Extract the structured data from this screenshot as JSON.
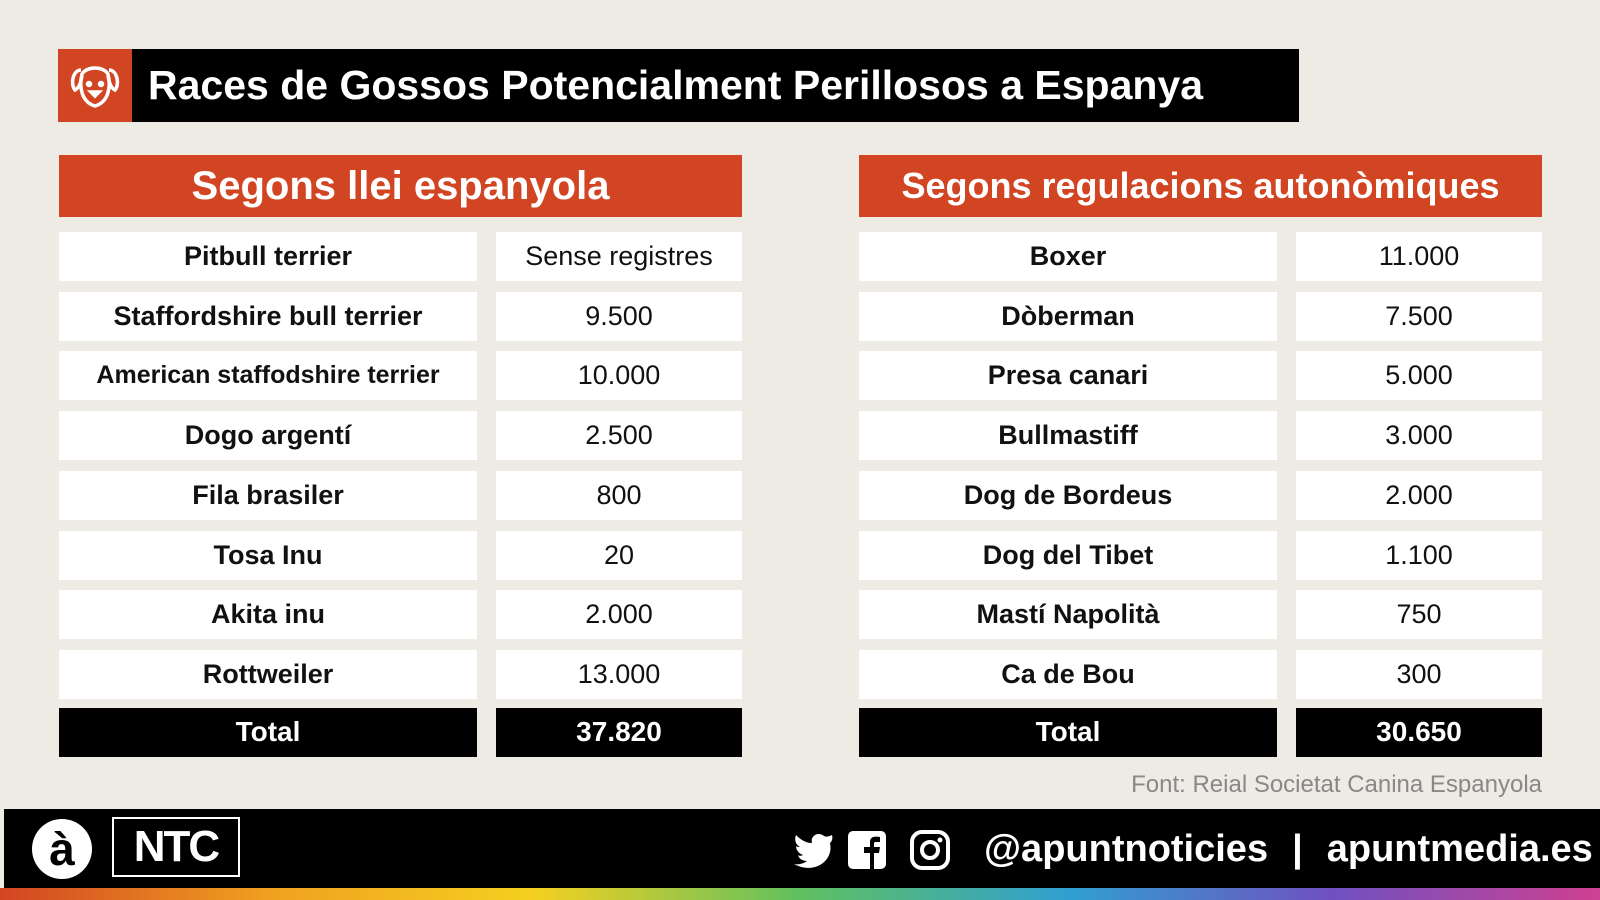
{
  "header": {
    "title": "Races de Gossos Potencialment Perillosos a Espanya"
  },
  "tables": [
    {
      "title": "Segons llei espanyola",
      "rows": [
        [
          "Pitbull terrier",
          "Sense registres"
        ],
        [
          "Staffordshire bull terrier",
          "9.500"
        ],
        [
          "American staffodshire terrier",
          "10.000"
        ],
        [
          "Dogo argentí",
          "2.500"
        ],
        [
          "Fila brasiler",
          "800"
        ],
        [
          "Tosa Inu",
          "20"
        ],
        [
          "Akita inu",
          "2.000"
        ],
        [
          "Rottweiler",
          "13.000"
        ]
      ],
      "total": [
        "Total",
        "37.820"
      ]
    },
    {
      "title": "Segons regulacions autonòmiques",
      "rows": [
        [
          "Boxer",
          "11.000"
        ],
        [
          "Dòberman",
          "7.500"
        ],
        [
          "Presa canari",
          "5.000"
        ],
        [
          "Bullmastiff",
          "3.000"
        ],
        [
          "Dog de Bordeus",
          "2.000"
        ],
        [
          "Dog del Tibet",
          "1.100"
        ],
        [
          "Mastí Napolità",
          "750"
        ],
        [
          "Ca de Bou",
          "300"
        ]
      ],
      "total": [
        "Total",
        "30.650"
      ]
    }
  ],
  "source": "Font: Reial Societat Canina Espanyola",
  "footer": {
    "logo": "à",
    "brand": "NTC",
    "handle": "@apuntnoticies",
    "separator": "|",
    "site": "apuntmedia.es"
  }
}
